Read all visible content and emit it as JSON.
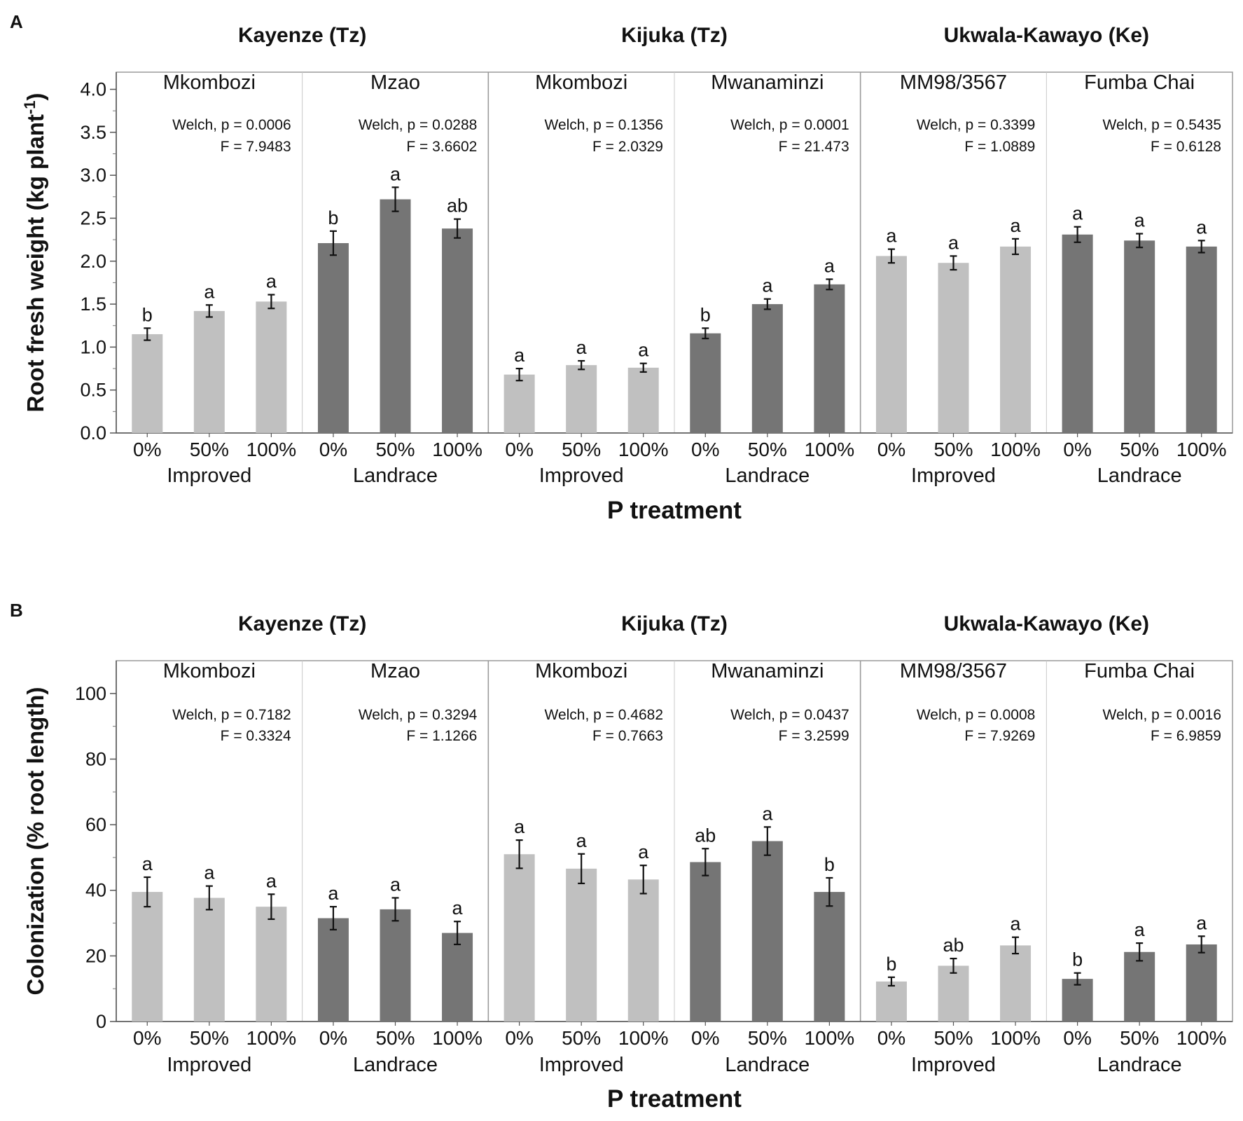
{
  "chart_data": [
    {
      "type": "bar",
      "panel_label": "A",
      "xlabel": "P treatment",
      "ylabel": "Root fresh weight (kg plant",
      "ylabel_sup": "-1",
      "ylabel_close": ")",
      "ylim": [
        0,
        4.2
      ],
      "yticks": [
        0.0,
        0.5,
        1.0,
        1.5,
        2.0,
        2.5,
        3.0,
        3.5,
        4.0
      ],
      "ytick_labels": [
        "0.0",
        "0.5",
        "1.0",
        "1.5",
        "2.0",
        "2.5",
        "3.0",
        "3.5",
        "4.0"
      ],
      "categories": [
        "0%",
        "50%",
        "100%"
      ],
      "sites": [
        {
          "name": "Kayenze (Tz)"
        },
        {
          "name": "Kijuka (Tz)"
        },
        {
          "name": "Ukwala-Kawayo (Ke)"
        }
      ],
      "groups": [
        {
          "site": 0,
          "variety": "Mkombozi",
          "type": "Improved",
          "color": "#c0c0c0",
          "stat1": "Welch, p = 0.0006",
          "stat2": "F = 7.9483",
          "values": [
            1.15,
            1.42,
            1.53
          ],
          "errors": [
            0.07,
            0.07,
            0.08
          ],
          "letters": [
            "b",
            "a",
            "a"
          ]
        },
        {
          "site": 0,
          "variety": "Mzao",
          "type": "Landrace",
          "color": "#757575",
          "stat1": "Welch, p = 0.0288",
          "stat2": "F = 3.6602",
          "values": [
            2.21,
            2.72,
            2.38
          ],
          "errors": [
            0.14,
            0.14,
            0.11
          ],
          "letters": [
            "b",
            "a",
            "ab"
          ]
        },
        {
          "site": 1,
          "variety": "Mkombozi",
          "type": "Improved",
          "color": "#c0c0c0",
          "stat1": "Welch, p = 0.1356",
          "stat2": "F = 2.0329",
          "values": [
            0.68,
            0.79,
            0.76
          ],
          "errors": [
            0.07,
            0.05,
            0.05
          ],
          "letters": [
            "a",
            "a",
            "a"
          ]
        },
        {
          "site": 1,
          "variety": "Mwanaminzi",
          "type": "Landrace",
          "color": "#757575",
          "stat1": "Welch, p = 0.0001",
          "stat2": "F = 21.473",
          "values": [
            1.16,
            1.5,
            1.73
          ],
          "errors": [
            0.06,
            0.06,
            0.06
          ],
          "letters": [
            "b",
            "a",
            "a"
          ]
        },
        {
          "site": 2,
          "variety": "MM98/3567",
          "type": "Improved",
          "color": "#c0c0c0",
          "stat1": "Welch, p = 0.3399",
          "stat2": "F = 1.0889",
          "values": [
            2.06,
            1.98,
            2.17
          ],
          "errors": [
            0.08,
            0.08,
            0.09
          ],
          "letters": [
            "a",
            "a",
            "a"
          ]
        },
        {
          "site": 2,
          "variety": "Fumba Chai",
          "type": "Landrace",
          "color": "#757575",
          "stat1": "Welch, p = 0.5435",
          "stat2": "F = 0.6128",
          "values": [
            2.31,
            2.24,
            2.17
          ],
          "errors": [
            0.09,
            0.08,
            0.07
          ],
          "letters": [
            "a",
            "a",
            "a"
          ]
        }
      ]
    },
    {
      "type": "bar",
      "panel_label": "B",
      "xlabel": "P treatment",
      "ylabel": "Colonization (% root length)",
      "ylabel_sup": "",
      "ylabel_close": "",
      "ylim": [
        0,
        110
      ],
      "yticks": [
        0,
        20,
        40,
        60,
        80,
        100
      ],
      "ytick_labels": [
        "0",
        "20",
        "40",
        "60",
        "80",
        "100"
      ],
      "categories": [
        "0%",
        "50%",
        "100%"
      ],
      "sites": [
        {
          "name": "Kayenze (Tz)"
        },
        {
          "name": "Kijuka (Tz)"
        },
        {
          "name": "Ukwala-Kawayo (Ke)"
        }
      ],
      "groups": [
        {
          "site": 0,
          "variety": "Mkombozi",
          "type": "Improved",
          "color": "#c0c0c0",
          "stat1": "Welch, p = 0.7182",
          "stat2": "F = 0.3324",
          "values": [
            39.5,
            37.7,
            35.0
          ],
          "errors": [
            4.5,
            3.6,
            3.8
          ],
          "letters": [
            "a",
            "a",
            "a"
          ]
        },
        {
          "site": 0,
          "variety": "Mzao",
          "type": "Landrace",
          "color": "#757575",
          "stat1": "Welch, p = 0.3294",
          "stat2": "F = 1.1266",
          "values": [
            31.5,
            34.2,
            27.0
          ],
          "errors": [
            3.5,
            3.5,
            3.5
          ],
          "letters": [
            "a",
            "a",
            "a"
          ]
        },
        {
          "site": 1,
          "variety": "Mkombozi",
          "type": "Improved",
          "color": "#c0c0c0",
          "stat1": "Welch, p = 0.4682",
          "stat2": "F = 0.7663",
          "values": [
            51.0,
            46.6,
            43.3
          ],
          "errors": [
            4.3,
            4.5,
            4.3
          ],
          "letters": [
            "a",
            "a",
            "a"
          ]
        },
        {
          "site": 1,
          "variety": "Mwanaminzi",
          "type": "Landrace",
          "color": "#757575",
          "stat1": "Welch, p = 0.0437",
          "stat2": "F = 3.2599",
          "values": [
            48.6,
            55.0,
            39.5
          ],
          "errors": [
            4.1,
            4.3,
            4.3
          ],
          "letters": [
            "ab",
            "a",
            "b"
          ]
        },
        {
          "site": 2,
          "variety": "MM98/3567",
          "type": "Improved",
          "color": "#c0c0c0",
          "stat1": "Welch, p = 0.0008",
          "stat2": "F = 7.9269",
          "values": [
            12.2,
            17.0,
            23.2
          ],
          "errors": [
            1.3,
            2.2,
            2.5
          ],
          "letters": [
            "b",
            "ab",
            "a"
          ]
        },
        {
          "site": 2,
          "variety": "Fumba Chai",
          "type": "Landrace",
          "color": "#757575",
          "stat1": "Welch, p = 0.0016",
          "stat2": "F = 6.9859",
          "values": [
            13.0,
            21.2,
            23.5
          ],
          "errors": [
            1.8,
            2.7,
            2.5
          ],
          "letters": [
            "b",
            "a",
            "a"
          ]
        }
      ]
    }
  ]
}
